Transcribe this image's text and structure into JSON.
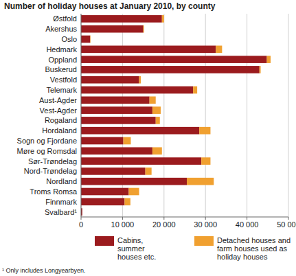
{
  "chart_data": {
    "type": "bar",
    "orientation": "horizontal",
    "stacked": true,
    "title": "Number of holiday houses at January 2010, by county",
    "categories": [
      "Østfold",
      "Akershus",
      "Oslo",
      "Hedmark",
      "Oppland",
      "Buskerud",
      "Vestfold",
      "Telemark",
      "Aust-Agder",
      "Vest-Agder",
      "Rogaland",
      "Hordaland",
      "Sogn og Fjordane",
      "Møre og Romsdal",
      "Sør-Trøndelag",
      "Nord-Trøndelag",
      "Nordland",
      "Troms Romsa",
      "Finnmark",
      "Svalbard¹"
    ],
    "series": [
      {
        "name": "Cabins, summer houses etc.",
        "color": "#9b1b1e",
        "values": [
          19500,
          15000,
          2200,
          32500,
          44800,
          43000,
          14000,
          27000,
          16500,
          17200,
          18000,
          28500,
          10200,
          17200,
          29000,
          15500,
          25500,
          11500,
          10500,
          300
        ]
      },
      {
        "name": "Detached houses and farm houses used as holiday houses",
        "color": "#f0a030",
        "values": [
          500,
          200,
          100,
          1500,
          900,
          300,
          400,
          1000,
          1500,
          2000,
          1000,
          2700,
          1800,
          2300,
          2200,
          1500,
          6500,
          2500,
          1400,
          0
        ]
      }
    ],
    "xlim": [
      0,
      50000
    ],
    "xticks": [
      0,
      {
        "value": 10000,
        "label": "10 000"
      },
      {
        "value": 20000,
        "label": "20 000"
      },
      {
        "value": 30000,
        "label": "30 000"
      },
      {
        "value": 40000,
        "label": "40 000"
      },
      {
        "value": 50000,
        "label": "50 000"
      }
    ],
    "grid": true,
    "legend": "bottom",
    "annotations": [
      "¹ Only includes Longyearbyen."
    ]
  }
}
